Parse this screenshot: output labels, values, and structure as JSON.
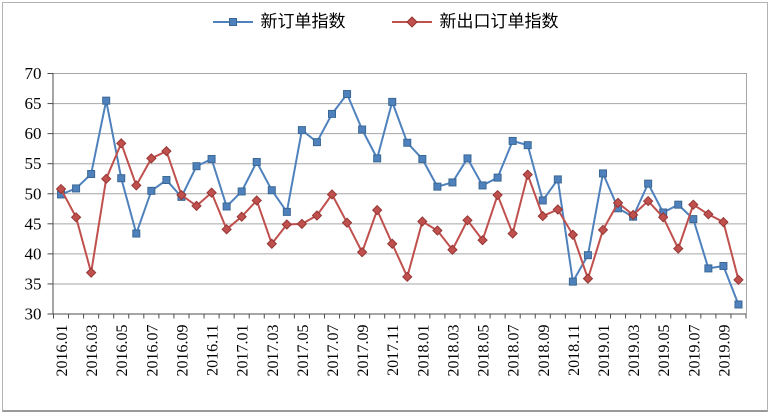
{
  "figure": {
    "background_color": "#FFFFFF",
    "border_color": "#B3B3B3"
  },
  "chart_data": {
    "type": "line",
    "title": "",
    "xlabel": "",
    "ylabel": "",
    "ylim": [
      30,
      70
    ],
    "ytick_step": 5,
    "grid": true,
    "legend_position": "top",
    "x_tick_label_every": 2,
    "x_label_rotation": -90,
    "axis_color": "#4d4d4d",
    "gridline_color": "#a6a6a6",
    "plot_border_color": "#a6a6a6",
    "categories": [
      "2016.01",
      "2016.02",
      "2016.03",
      "2016.04",
      "2016.05",
      "2016.06",
      "2016.07",
      "2016.08",
      "2016.09",
      "2016.10",
      "2016.11",
      "2016.12",
      "2017.01",
      "2017.02",
      "2017.03",
      "2017.04",
      "2017.05",
      "2017.06",
      "2017.07",
      "2017.08",
      "2017.09",
      "2017.10",
      "2017.11",
      "2017.12",
      "2018.01",
      "2018.02",
      "2018.03",
      "2018.04",
      "2018.05",
      "2018.06",
      "2018.07",
      "2018.08",
      "2018.09",
      "2018.10",
      "2018.11",
      "2018.12",
      "2019.01",
      "2019.02",
      "2019.03",
      "2019.04",
      "2019.05",
      "2019.06",
      "2019.07",
      "2019.08",
      "2019.09",
      "2019.10"
    ],
    "series": [
      {
        "id": "new-orders",
        "name": "新订单指数",
        "color": "#4F81BD",
        "marker": "square",
        "marker_border": "#3A6894",
        "values": [
          49.8,
          50.8,
          53.2,
          65.4,
          52.5,
          43.3,
          50.4,
          52.2,
          49.4,
          54.5,
          55.7,
          47.8,
          50.3,
          55.2,
          50.5,
          46.9,
          60.5,
          58.5,
          63.2,
          66.5,
          60.6,
          55.8,
          65.2,
          58.4,
          55.7,
          51.1,
          51.8,
          55.8,
          51.3,
          52.6,
          58.7,
          58.0,
          48.8,
          52.3,
          35.3,
          39.7,
          53.3,
          47.5,
          46.1,
          51.6,
          46.8,
          48.1,
          45.7,
          37.5,
          37.9,
          31.5
        ]
      },
      {
        "id": "new-export-orders",
        "name": "新出口订单指数",
        "color": "#C0504D",
        "marker": "diamond",
        "marker_border": "#953735",
        "values": [
          50.7,
          46.0,
          36.8,
          52.4,
          58.3,
          51.3,
          55.8,
          57.0,
          49.7,
          47.9,
          50.1,
          44.0,
          46.1,
          48.8,
          41.6,
          44.8,
          44.9,
          46.3,
          49.8,
          45.1,
          40.2,
          47.2,
          41.6,
          36.1,
          45.3,
          43.8,
          40.6,
          45.5,
          42.2,
          49.7,
          43.3,
          53.1,
          46.2,
          47.3,
          43.1,
          35.8,
          43.9,
          48.4,
          46.4,
          48.7,
          46.0,
          40.8,
          48.1,
          46.5,
          45.2,
          35.6
        ]
      }
    ]
  }
}
